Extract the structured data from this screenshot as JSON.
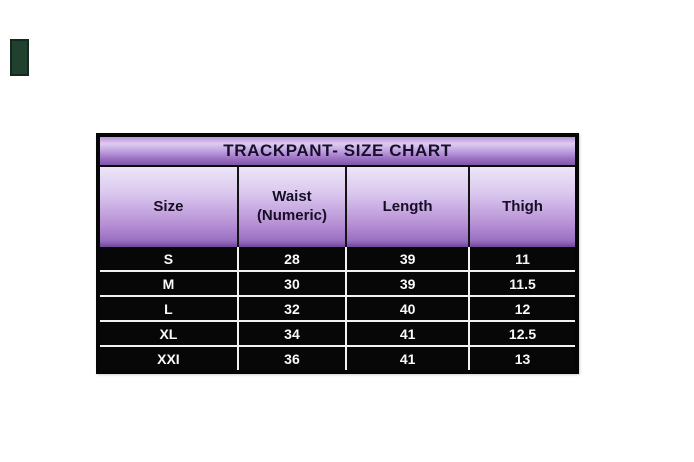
{
  "chart_data": {
    "type": "table",
    "title": "TRACKPANT- SIZE CHART",
    "columns": [
      "Size",
      "Waist (Numeric)",
      "Length",
      "Thigh"
    ],
    "rows": [
      [
        "S",
        "28",
        "39",
        "11"
      ],
      [
        "M",
        "30",
        "39",
        "11.5"
      ],
      [
        "L",
        "32",
        "40",
        "12"
      ],
      [
        "XL",
        "34",
        "41",
        "12.5"
      ],
      [
        "XXI",
        "36",
        "41",
        "13"
      ]
    ]
  },
  "colors": {
    "header_gradient_top": "#ede6f7",
    "header_gradient_bottom": "#6f4898",
    "title_gradient_light": "#ddccf0",
    "title_gradient_dark": "#8155a8",
    "data_row_background": "#070707",
    "data_row_text": "#fafafa",
    "grid_line": "#f2f2f2",
    "outer_border": "#050505",
    "stray_rectangle": "#21402e"
  }
}
